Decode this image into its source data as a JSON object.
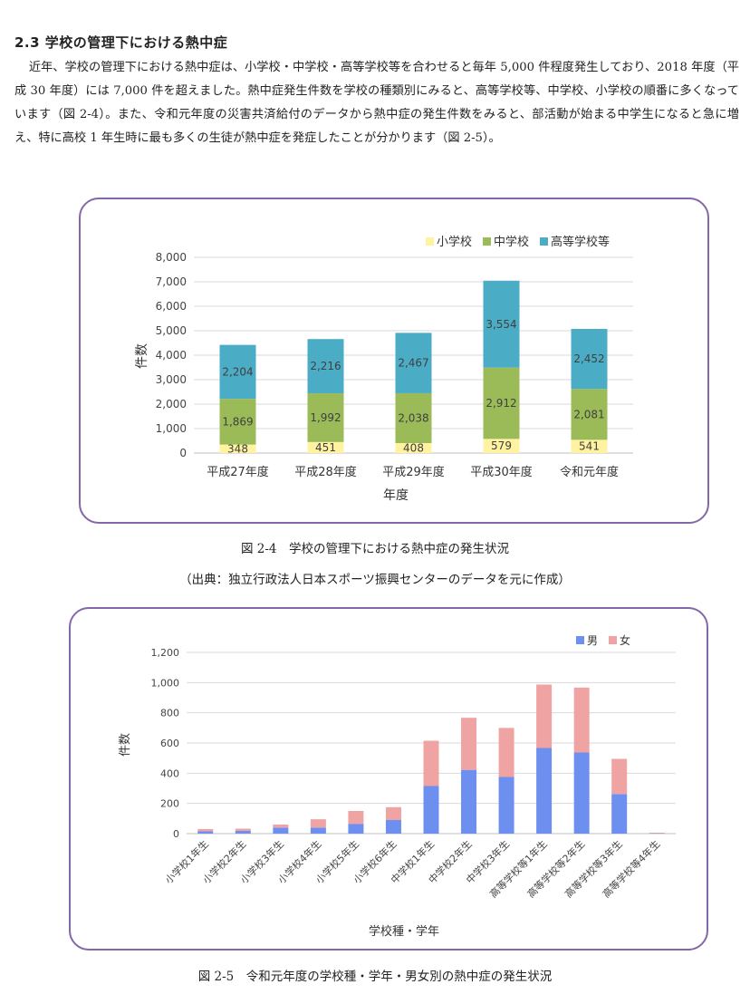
{
  "section": {
    "heading": "2.3 学校の管理下における熱中症",
    "paragraph": "近年、学校の管理下における熱中症は、小学校・中学校・高等学校等を合わせると毎年 5,000 件程度発生しており、2018 年度（平成 30 年度）には 7,000 件を超えました。熱中症発生件数を学校の種類別にみると、高等学校等、中学校、小学校の順番に多くなっています（図 2-4）。また、令和元年度の災害共済給付のデータから熱中症の発生件数をみると、部活動が始まる中学生になると急に増え、特に高校 1 年生時に最も多くの生徒が熱中症を発症したことが分かります（図 2-5）。"
  },
  "figure1": {
    "caption": "図 2-4　学校の管理下における熱中症の発生状況",
    "source": "（出典：独立行政法人日本スポーツ振興センターのデータを元に作成）"
  },
  "figure2": {
    "caption": "図 2-5　令和元年度の学校種・学年・男女別の熱中症の発生状況"
  },
  "chart_data": [
    {
      "type": "bar",
      "stacked": true,
      "categories": [
        "平成27年度",
        "平成28年度",
        "平成29年度",
        "平成30年度",
        "令和元年度"
      ],
      "series": [
        {
          "name": "小学校",
          "color": "#fff2a1",
          "values": [
            348,
            451,
            408,
            579,
            541
          ]
        },
        {
          "name": "中学校",
          "color": "#9bbb59",
          "values": [
            1869,
            1992,
            2038,
            2912,
            2081
          ]
        },
        {
          "name": "高等学校等",
          "color": "#4bacc6",
          "values": [
            2204,
            2216,
            2467,
            3554,
            2452
          ]
        }
      ],
      "yticks": [
        "0",
        "1,000",
        "2,000",
        "3,000",
        "4,000",
        "5,000",
        "6,000",
        "7,000",
        "8,000"
      ],
      "ylim": [
        0,
        8000
      ],
      "xlabel": "年度",
      "ylabel": "件数",
      "legend": "top-right"
    },
    {
      "type": "bar",
      "stacked": true,
      "categories": [
        "小学校1年生",
        "小学校2年生",
        "小学校3年生",
        "小学校4年生",
        "小学校5年生",
        "小学校6年生",
        "中学校1年生",
        "中学校2年生",
        "中学校3年生",
        "高等学校等1年生",
        "高等学校等2年生",
        "高等学校等3年生",
        "高等学校等4年生"
      ],
      "series": [
        {
          "name": "男",
          "color": "#6d8ff0",
          "values": [
            15,
            18,
            40,
            40,
            65,
            90,
            315,
            422,
            375,
            567,
            537,
            262,
            2
          ]
        },
        {
          "name": "女",
          "color": "#f0a3a3",
          "values": [
            15,
            15,
            20,
            55,
            85,
            85,
            300,
            345,
            325,
            420,
            430,
            233,
            4
          ]
        }
      ],
      "yticks": [
        "0",
        "200",
        "400",
        "600",
        "800",
        "1,000",
        "1,200"
      ],
      "ylim": [
        0,
        1200
      ],
      "xlabel": "学校種・学年",
      "ylabel": "件数",
      "legend": "top-right"
    }
  ]
}
